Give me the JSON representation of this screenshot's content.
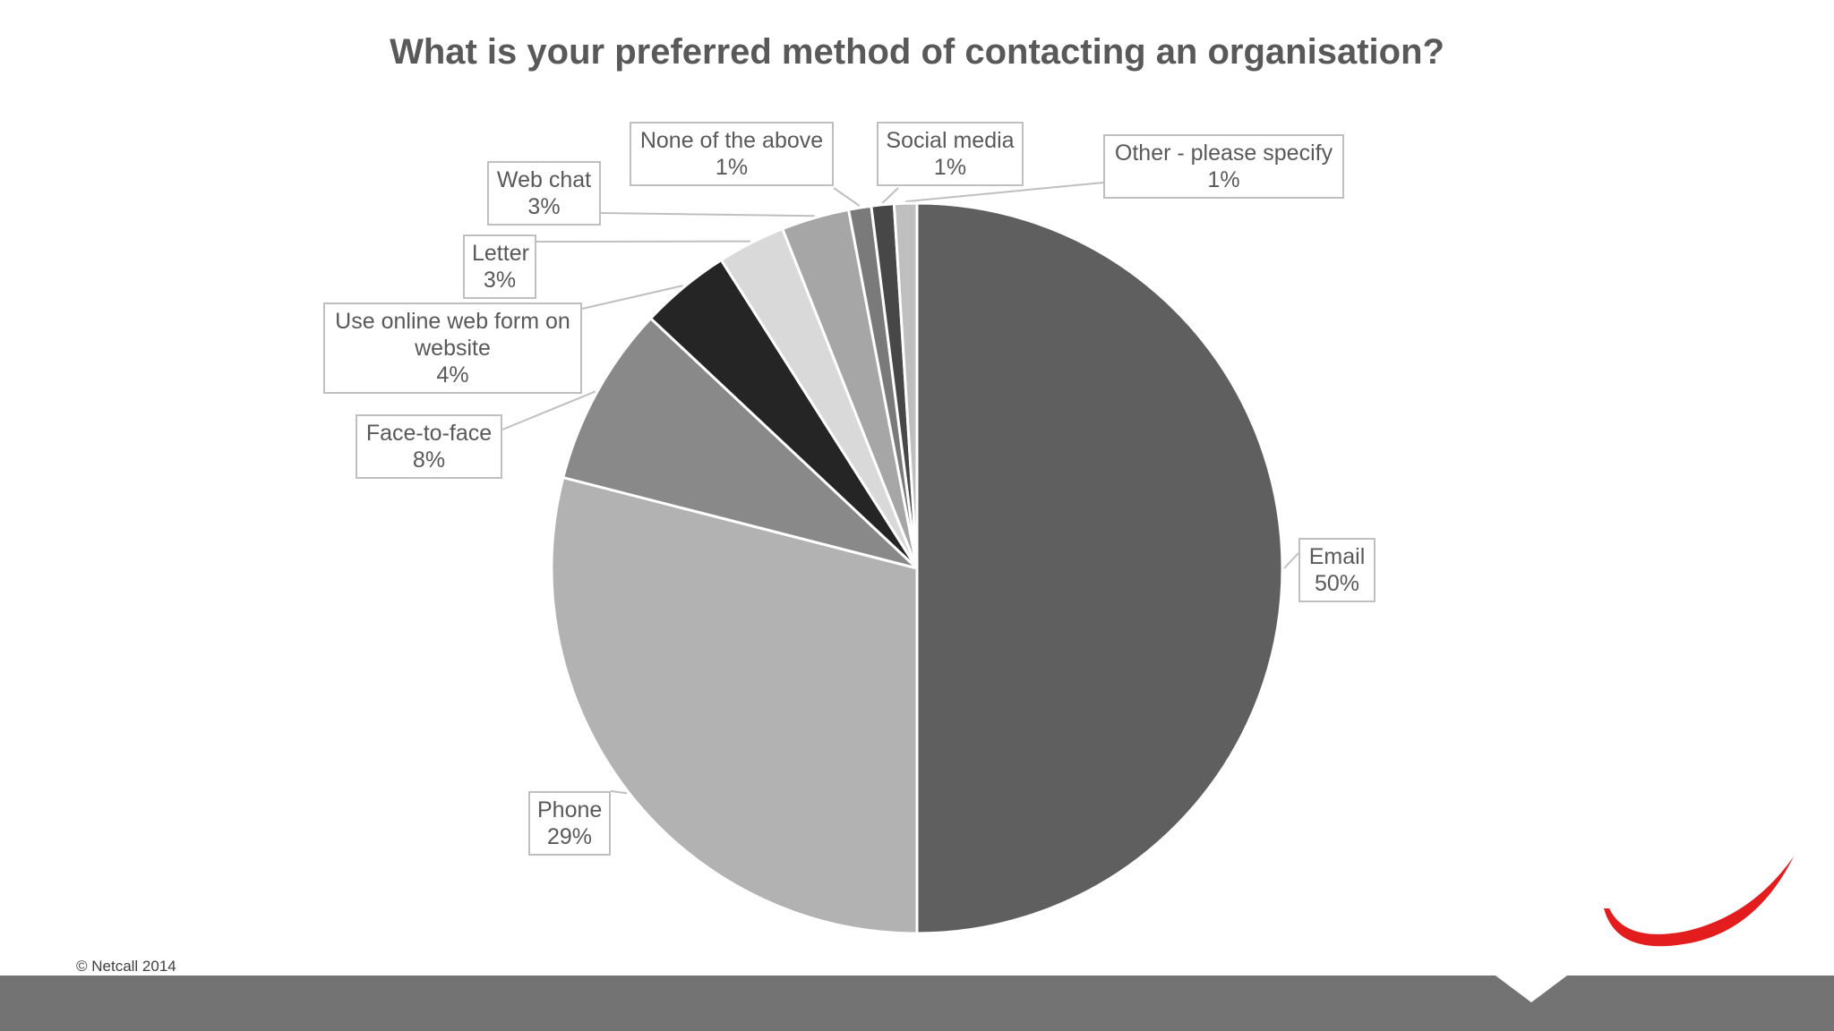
{
  "slide": {
    "copyright": "© Netcall 2014"
  },
  "chart_data": {
    "type": "pie",
    "title": "What is your preferred method of contacting an organisation?",
    "slices": [
      {
        "label": "Email",
        "value": 50,
        "value_label": "50%",
        "color": "#5f5f5f"
      },
      {
        "label": "Phone",
        "value": 29,
        "value_label": "29%",
        "color": "#b2b2b2"
      },
      {
        "label": "Face-to-face",
        "value": 8,
        "value_label": "8%",
        "color": "#898989"
      },
      {
        "label": "Use online web form on website",
        "value": 4,
        "value_label": "4%",
        "color": "#252525"
      },
      {
        "label": "Letter",
        "value": 3,
        "value_label": "3%",
        "color": "#d9d9d9"
      },
      {
        "label": "Web chat",
        "value": 3,
        "value_label": "3%",
        "color": "#a6a6a6"
      },
      {
        "label": "None of the above",
        "value": 1,
        "value_label": "1%",
        "color": "#7a7a7a"
      },
      {
        "label": "Social media",
        "value": 1,
        "value_label": "1%",
        "color": "#474747"
      },
      {
        "label": "Other - please specify",
        "value": 1,
        "value_label": "1%",
        "color": "#bfbfbf"
      }
    ],
    "start": "12 o'clock",
    "direction": "clockwise",
    "legend": "none",
    "data_labels": "callouts"
  },
  "colors": {
    "footer_bar": "#737373",
    "logo_swoosh": "#e31d1d",
    "title_text": "#595959"
  }
}
